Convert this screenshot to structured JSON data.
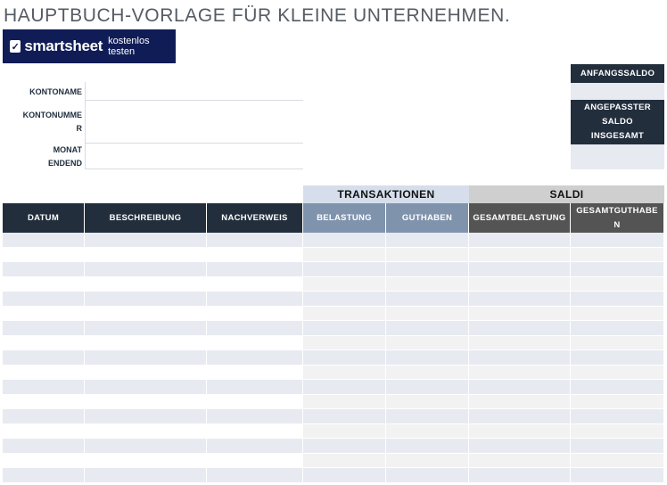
{
  "title": "HAUPTBUCH-VORLAGE FÜR KLEINE UNTERNEHMEN.",
  "banner": {
    "brand": "smartsheet",
    "cta": "kostenlos testen",
    "check_icon": "check-icon",
    "color": "#0f1c56"
  },
  "account_info": {
    "konto_name_label": "KONTONAME",
    "konto_nummer_label_1": "KONTONUMME",
    "konto_nummer_label_2": "R",
    "monat_endend_label_1": "MONAT",
    "monat_endend_label_2": "ENDEND"
  },
  "summary": {
    "anfangssaldo_label": "ANFANGSSALDO",
    "angepasster_line1": "ANGEPASSTER",
    "angepasster_line2": "SALDO",
    "angepasster_line3": "INSGESAMT"
  },
  "groups": {
    "transaktionen": "TRANSAKTIONEN",
    "saldi": "SALDI"
  },
  "columns": {
    "datum": "DATUM",
    "beschreibung": "BESCHREIBUNG",
    "nachverweis": "NACHVERWEIS",
    "belastung": "BELASTUNG",
    "guthaben": "GUTHABEN",
    "gesamtbelastung": "GESAMTBELASTUNG",
    "gesamtguthaben_1": "GESAMTGUTHABE",
    "gesamtguthaben_2": "N"
  },
  "colors": {
    "dark_header": "#222e3c",
    "transaction_header": "#8093ad",
    "transaction_group": "#d6deec",
    "saldi_header": "#545454",
    "saldi_group": "#cfcfcf",
    "row_alt_blue": "#e8eaf2",
    "row_alt_gray": "#f2f2f2"
  }
}
